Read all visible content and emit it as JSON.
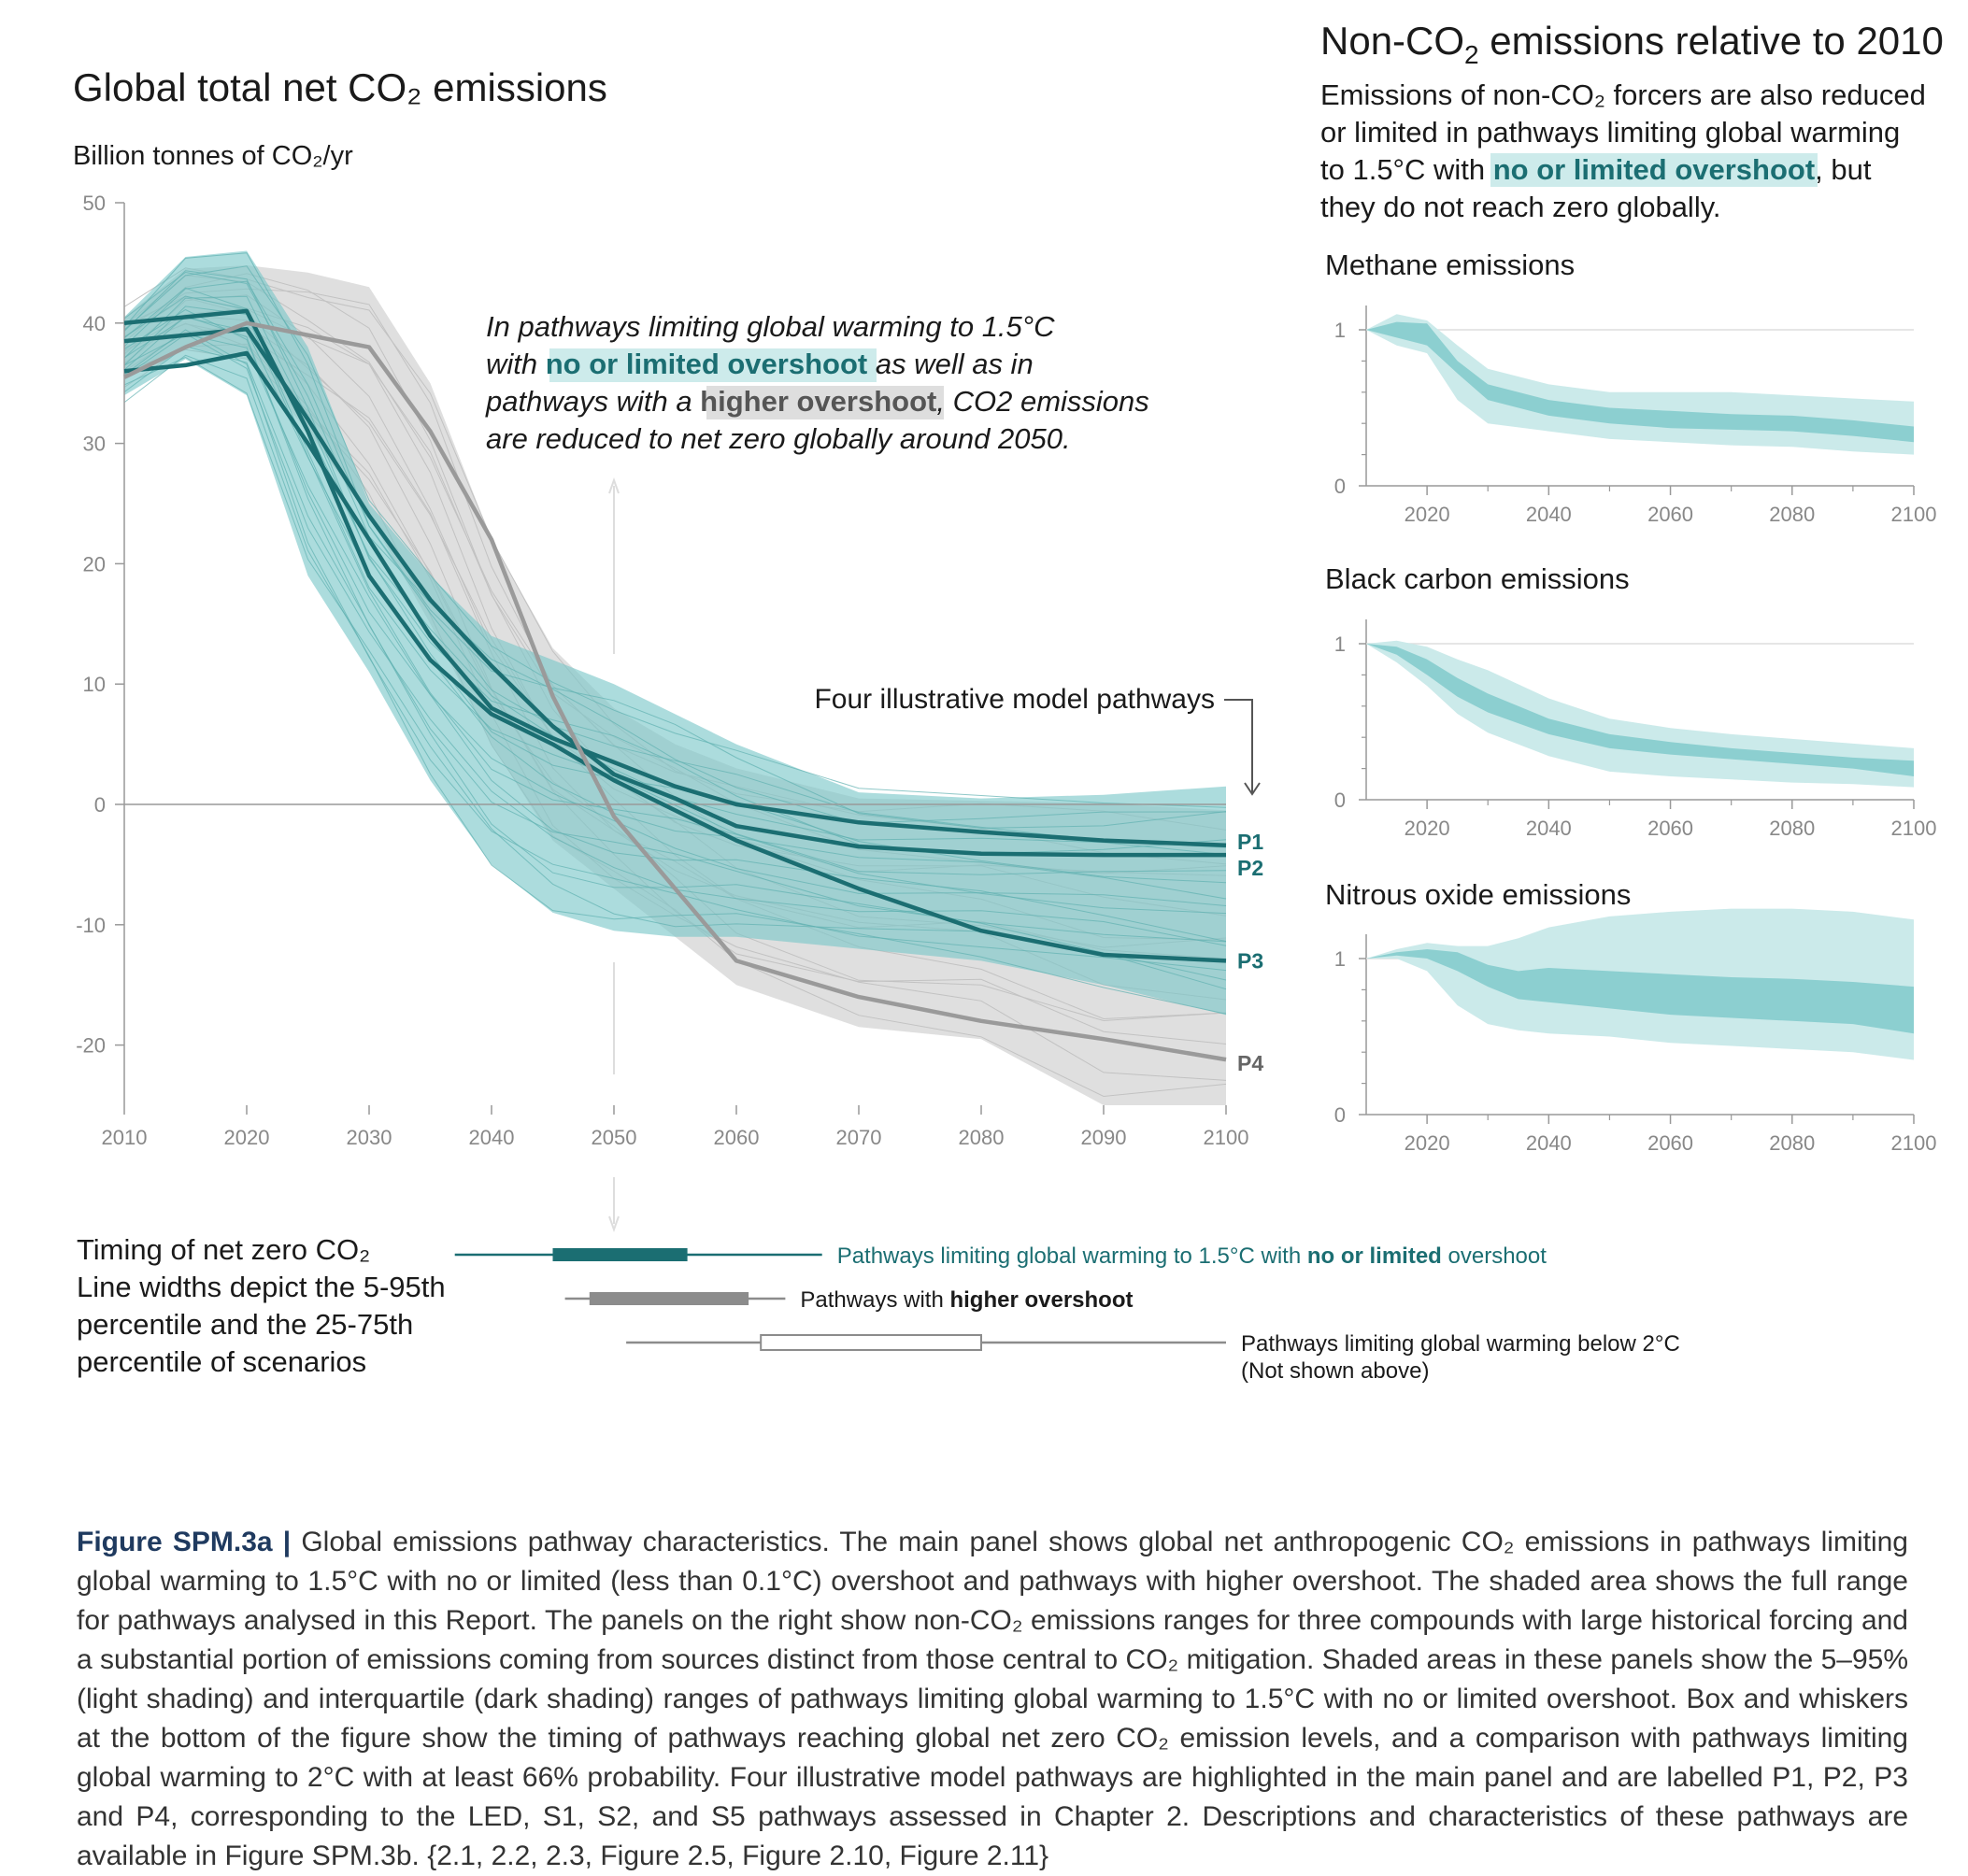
{
  "colors": {
    "teal": "#1b6e72",
    "teal_light": "#79c7c8",
    "teal_band_light": "#cbeaea",
    "teal_band_dark": "#8ccfd0",
    "grey_band": "#d4d4d4",
    "grey_line": "#9a9a9a",
    "highlight_teal_bg": "#cdebeb",
    "highlight_grey_bg": "#dedede"
  },
  "main": {
    "title": "Global total net CO₂ emissions",
    "ylabel": "Billion tonnes of CO₂/yr",
    "annotation": {
      "line1": "In pathways limiting global warming to 1.5°C",
      "line2_pre": "with ",
      "line2_hl": "no or limited overshoot",
      "line2_post": " as well as in",
      "line3_pre": "pathways with a ",
      "line3_hl": "higher overshoot",
      "line3_post": ", CO2 emissions",
      "line4": "are reduced to net zero globally around 2050."
    },
    "pathways_label": "Four illustrative model pathways"
  },
  "right": {
    "title_pre": "Non-CO",
    "title_sub": "2",
    "title_post": " emissions relative to 2010",
    "desc_line1": "Emissions of non-CO₂ forcers are also reduced",
    "desc_line2": "or limited in pathways limiting global warming",
    "desc_line3_pre": "to 1.5°C with ",
    "desc_line3_hl": "no or limited overshoot",
    "desc_line3_post": ", but",
    "desc_line4": "they do not reach zero globally."
  },
  "timing": {
    "title": "Timing of net zero CO₂",
    "desc1": "Line widths depict the 5-95th",
    "desc2": "percentile and the 25-75th",
    "desc3": "percentile of scenarios",
    "rows": [
      {
        "label_pre": "Pathways limiting global warming to 1.5°C with ",
        "label_bold": "no or limited",
        "label_post": " overshoot",
        "p5": 2037,
        "p25": 2045,
        "p75": 2056,
        "p95": 2067,
        "style": "teal"
      },
      {
        "label_pre": "Pathways with ",
        "label_bold": "higher overshoot",
        "label_post": "",
        "p5": 2046,
        "p25": 2048,
        "p75": 2061,
        "p95": 2064,
        "style": "grey"
      },
      {
        "label_pre": "Pathways limiting global warming below 2°C",
        "label_bold": "",
        "label_post": "",
        "label2": "(Not shown above)",
        "p5": 2051,
        "p25": 2062,
        "p75": 2080,
        "p95": 2100,
        "style": "hollow"
      }
    ]
  },
  "caption": {
    "fig_id": "Figure SPM.3a |",
    "text": "Global emissions pathway characteristics. The main panel shows global net anthropogenic CO₂ emissions in pathways limiting global warming to 1.5°C with no or limited (less than 0.1°C) overshoot and pathways with higher overshoot. The shaded area shows the full range for pathways analysed in this Report. The panels on the right show non-CO₂ emissions ranges for three compounds with large historical forcing and a substantial portion of emissions coming from sources distinct from those central to CO₂ mitigation. Shaded areas in these panels show the 5–95% (light shading) and interquartile (dark shading) ranges of pathways limiting global warming to 1.5°C with no or limited overshoot. Box and whiskers at the bottom of the figure show the timing of pathways reaching global net zero CO₂ emission levels, and a comparison with pathways limiting global warming to 2°C with at least 66% probability. Four illustrative model pathways are highlighted in the main panel and are labelled P1, P2, P3 and P4, corresponding to the LED, S1, S2, and S5 pathways assessed in Chapter 2. Descriptions and characteristics of these pathways are available in Figure SPM.3b. {2.1, 2.2, 2.3, Figure 2.5, Figure 2.10, Figure 2.11}"
  },
  "chart_data": [
    {
      "type": "line",
      "title": "Global total net CO₂ emissions",
      "ylabel": "Billion tonnes of CO₂/yr",
      "xlabel": "",
      "xlim": [
        2010,
        2100
      ],
      "ylim": [
        -25,
        50
      ],
      "xticks": [
        2010,
        2020,
        2030,
        2040,
        2050,
        2060,
        2070,
        2080,
        2090,
        2100
      ],
      "yticks": [
        -20,
        -10,
        0,
        10,
        20,
        30,
        40,
        50
      ],
      "x": [
        2010,
        2015,
        2020,
        2025,
        2030,
        2035,
        2040,
        2045,
        2050,
        2055,
        2060,
        2070,
        2080,
        2090,
        2100
      ],
      "bands": [
        {
          "kind": "higher_overshoot",
          "upper": [
            40.5,
            44.5,
            44.8,
            44.2,
            43,
            35,
            22,
            13,
            8,
            5,
            3,
            0.5,
            0.3,
            0.1,
            -0.5
          ],
          "lower": [
            35.5,
            38,
            37,
            31,
            24,
            15,
            5,
            -3,
            -7,
            -11,
            -15,
            -18.5,
            -19.5,
            -25,
            -25
          ]
        },
        {
          "kind": "no_or_limited_overshoot",
          "upper": [
            40.5,
            45.5,
            46,
            38,
            25,
            19,
            14,
            12,
            10,
            7.5,
            5,
            1,
            0.5,
            0.8,
            1.5
          ],
          "lower": [
            34,
            37,
            34,
            19,
            11,
            2,
            -5,
            -9,
            -10.5,
            -11,
            -11,
            -12,
            -13,
            -15,
            -17.5
          ]
        }
      ],
      "series": [
        {
          "name": "P1",
          "values": [
            36,
            36.5,
            37.5,
            30,
            22,
            14,
            8,
            5.5,
            3.5,
            1.5,
            0,
            -1.5,
            -2.3,
            -3,
            -3.4
          ]
        },
        {
          "name": "P2",
          "values": [
            38.5,
            39,
            39.5,
            32,
            24,
            17,
            11.5,
            6.5,
            2.5,
            0.5,
            -1.8,
            -3.5,
            -4.1,
            -4.2,
            -4.2
          ]
        },
        {
          "name": "P3",
          "values": [
            40,
            40.5,
            41,
            31,
            19,
            12,
            7.5,
            5,
            2,
            -0.5,
            -3,
            -7,
            -10.5,
            -12.5,
            -13
          ]
        },
        {
          "name": "P4",
          "values": [
            35.5,
            38,
            40,
            39,
            38,
            31,
            22,
            9,
            -1,
            -7,
            -13,
            -16,
            -18,
            -19.5,
            -21.2
          ]
        }
      ]
    },
    {
      "type": "area",
      "title": "Methane emissions",
      "xlim": [
        2010,
        2100
      ],
      "ylim": [
        0,
        1
      ],
      "xticks": [
        2020,
        2040,
        2060,
        2080,
        2100
      ],
      "yticks": [
        0,
        1
      ],
      "x": [
        2010,
        2015,
        2020,
        2025,
        2030,
        2040,
        2050,
        2060,
        2070,
        2080,
        2090,
        2100
      ],
      "p95": [
        1,
        1.1,
        1.06,
        0.9,
        0.75,
        0.65,
        0.6,
        0.6,
        0.6,
        0.58,
        0.56,
        0.54
      ],
      "p75": [
        1,
        1.05,
        1.04,
        0.8,
        0.65,
        0.55,
        0.5,
        0.48,
        0.46,
        0.45,
        0.42,
        0.38
      ],
      "p25": [
        1,
        0.95,
        0.9,
        0.72,
        0.55,
        0.45,
        0.4,
        0.37,
        0.36,
        0.35,
        0.32,
        0.28
      ],
      "p5": [
        1,
        0.9,
        0.85,
        0.55,
        0.4,
        0.35,
        0.3,
        0.28,
        0.26,
        0.25,
        0.22,
        0.2
      ]
    },
    {
      "type": "area",
      "title": "Black carbon emissions",
      "xlim": [
        2010,
        2100
      ],
      "ylim": [
        0,
        1
      ],
      "xticks": [
        2020,
        2040,
        2060,
        2080,
        2100
      ],
      "yticks": [
        0,
        1
      ],
      "x": [
        2010,
        2015,
        2020,
        2025,
        2030,
        2040,
        2050,
        2060,
        2070,
        2080,
        2090,
        2100
      ],
      "p95": [
        1,
        1.02,
        0.98,
        0.9,
        0.83,
        0.65,
        0.52,
        0.46,
        0.42,
        0.39,
        0.36,
        0.33
      ],
      "p75": [
        1,
        0.98,
        0.9,
        0.78,
        0.68,
        0.52,
        0.42,
        0.37,
        0.33,
        0.3,
        0.27,
        0.25
      ],
      "p25": [
        1,
        0.93,
        0.8,
        0.66,
        0.56,
        0.42,
        0.33,
        0.29,
        0.26,
        0.23,
        0.2,
        0.15
      ],
      "p5": [
        1,
        0.88,
        0.73,
        0.55,
        0.43,
        0.28,
        0.18,
        0.15,
        0.13,
        0.11,
        0.1,
        0.08
      ]
    },
    {
      "type": "area",
      "title": "Nitrous oxide emissions",
      "xlim": [
        2010,
        2100
      ],
      "ylim": [
        0,
        1
      ],
      "xticks": [
        2020,
        2040,
        2060,
        2080,
        2100
      ],
      "yticks": [
        0,
        1
      ],
      "x": [
        2010,
        2015,
        2020,
        2025,
        2030,
        2035,
        2040,
        2050,
        2060,
        2070,
        2080,
        2090,
        2100
      ],
      "p95": [
        1,
        1.06,
        1.1,
        1.08,
        1.08,
        1.13,
        1.2,
        1.27,
        1.3,
        1.32,
        1.32,
        1.3,
        1.25
      ],
      "p75": [
        1,
        1.04,
        1.06,
        1.04,
        0.96,
        0.92,
        0.94,
        0.92,
        0.9,
        0.88,
        0.87,
        0.85,
        0.82
      ],
      "p25": [
        1,
        1.02,
        1.0,
        0.92,
        0.82,
        0.74,
        0.72,
        0.68,
        0.64,
        0.62,
        0.6,
        0.58,
        0.52
      ],
      "p5": [
        1,
        1.0,
        0.92,
        0.7,
        0.58,
        0.54,
        0.52,
        0.5,
        0.46,
        0.44,
        0.42,
        0.4,
        0.35
      ]
    }
  ]
}
